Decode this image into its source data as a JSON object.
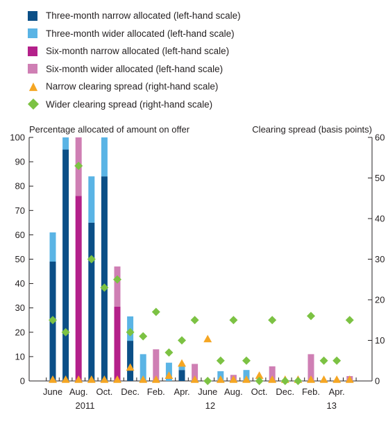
{
  "colors": {
    "three_narrow": "#0b4f87",
    "three_wider": "#5ab4e5",
    "six_narrow": "#b4208a",
    "six_wider": "#cf7fb4",
    "narrow_spread": "#f5a623",
    "wider_spread": "#7cc243",
    "axis": "#231f20"
  },
  "legend": [
    {
      "label": "Three-month narrow allocated (left-hand scale)",
      "marker": "square",
      "color_key": "three_narrow"
    },
    {
      "label": "Three-month wider allocated (left-hand scale)",
      "marker": "square",
      "color_key": "three_wider"
    },
    {
      "label": "Six-month narrow allocated (left-hand scale)",
      "marker": "square",
      "color_key": "six_narrow"
    },
    {
      "label": "Six-month wider allocated (left-hand scale)",
      "marker": "square",
      "color_key": "six_wider"
    },
    {
      "label": "Narrow clearing spread (right-hand scale)",
      "marker": "triangle",
      "color_key": "narrow_spread"
    },
    {
      "label": "Wider clearing spread (right-hand scale)",
      "marker": "diamond",
      "color_key": "wider_spread"
    }
  ],
  "chart_data": {
    "type": "bar",
    "ylabel_left": "Percentage allocated of amount on offer",
    "ylabel_right": "Clearing spread (basis points)",
    "ylim_left": [
      0,
      100
    ],
    "yticks_left": [
      0,
      10,
      20,
      30,
      40,
      50,
      60,
      70,
      80,
      90,
      100
    ],
    "ylim_right": [
      0,
      60
    ],
    "yticks_right": [
      0,
      10,
      20,
      30,
      40,
      50,
      60
    ],
    "month_ticks": [
      "June",
      "Aug.",
      "Oct.",
      "Dec.",
      "Feb.",
      "Apr.",
      "June",
      "Aug.",
      "Oct.",
      "Dec.",
      "Feb.",
      "Apr."
    ],
    "year_labels": [
      "2011",
      "12",
      "13"
    ],
    "bars": [
      {
        "period": "Jun 2011",
        "tenor": "three-month",
        "narrow": 49,
        "wider": 12
      },
      {
        "period": "Jul 2011",
        "tenor": "three-month",
        "narrow": 95,
        "wider": 5
      },
      {
        "period": "Aug 2011",
        "tenor": "six-month",
        "narrow": 76,
        "wider": 24
      },
      {
        "period": "Sep 2011",
        "tenor": "three-month",
        "narrow": 65,
        "wider": 19
      },
      {
        "period": "Oct 2011",
        "tenor": "three-month",
        "narrow": 84,
        "wider": 16
      },
      {
        "period": "Nov 2011",
        "tenor": "six-month",
        "narrow": 30.5,
        "wider": 16.5
      },
      {
        "period": "Dec 2011",
        "tenor": "three-month",
        "narrow": 16.5,
        "wider": 10
      },
      {
        "period": "Jan 2012",
        "tenor": "three-month",
        "narrow": 0,
        "wider": 11
      },
      {
        "period": "Feb 2012",
        "tenor": "six-month",
        "narrow": 0,
        "wider": 13
      },
      {
        "period": "Mar 2012",
        "tenor": "three-month",
        "narrow": 0,
        "wider": 7.5
      },
      {
        "period": "Apr 2012",
        "tenor": "three-month",
        "narrow": 4.5,
        "wider": 2
      },
      {
        "period": "May 2012",
        "tenor": "six-month",
        "narrow": 0,
        "wider": 7
      },
      {
        "period": "Jun 2012",
        "tenor": "three-month",
        "narrow": 0,
        "wider": 0
      },
      {
        "period": "Jul 2012",
        "tenor": "three-month",
        "narrow": 0,
        "wider": 4
      },
      {
        "period": "Aug 2012",
        "tenor": "six-month",
        "narrow": 0,
        "wider": 2.5
      },
      {
        "period": "Sep 2012",
        "tenor": "three-month",
        "narrow": 0,
        "wider": 4.5
      },
      {
        "period": "Oct 2012",
        "tenor": "three-month",
        "narrow": 0,
        "wider": 0
      },
      {
        "period": "Nov 2012",
        "tenor": "six-month",
        "narrow": 0,
        "wider": 6
      },
      {
        "period": "Dec 2012",
        "tenor": "three-month",
        "narrow": 0,
        "wider": 0
      },
      {
        "period": "Jan 2013",
        "tenor": "three-month",
        "narrow": 0,
        "wider": 0
      },
      {
        "period": "Feb 2013",
        "tenor": "six-month",
        "narrow": 0,
        "wider": 11
      },
      {
        "period": "Mar 2013",
        "tenor": "three-month",
        "narrow": 0,
        "wider": 0
      },
      {
        "period": "Apr 2013",
        "tenor": "three-month",
        "narrow": 0,
        "wider": 0
      },
      {
        "period": "May 2013",
        "tenor": "six-month",
        "narrow": 0,
        "wider": 2
      }
    ],
    "narrow_clearing_spread": [
      0,
      0,
      0,
      0,
      0,
      0,
      3,
      0,
      0,
      1,
      4,
      0,
      10,
      0,
      0,
      0,
      1,
      0,
      0,
      0,
      0,
      0,
      0,
      0
    ],
    "wider_clearing_spread": [
      15,
      12,
      53,
      30,
      23,
      25,
      12,
      11,
      17,
      7,
      10,
      15,
      0,
      5,
      15,
      5,
      0,
      15,
      0,
      0,
      16,
      5,
      5,
      15
    ]
  }
}
